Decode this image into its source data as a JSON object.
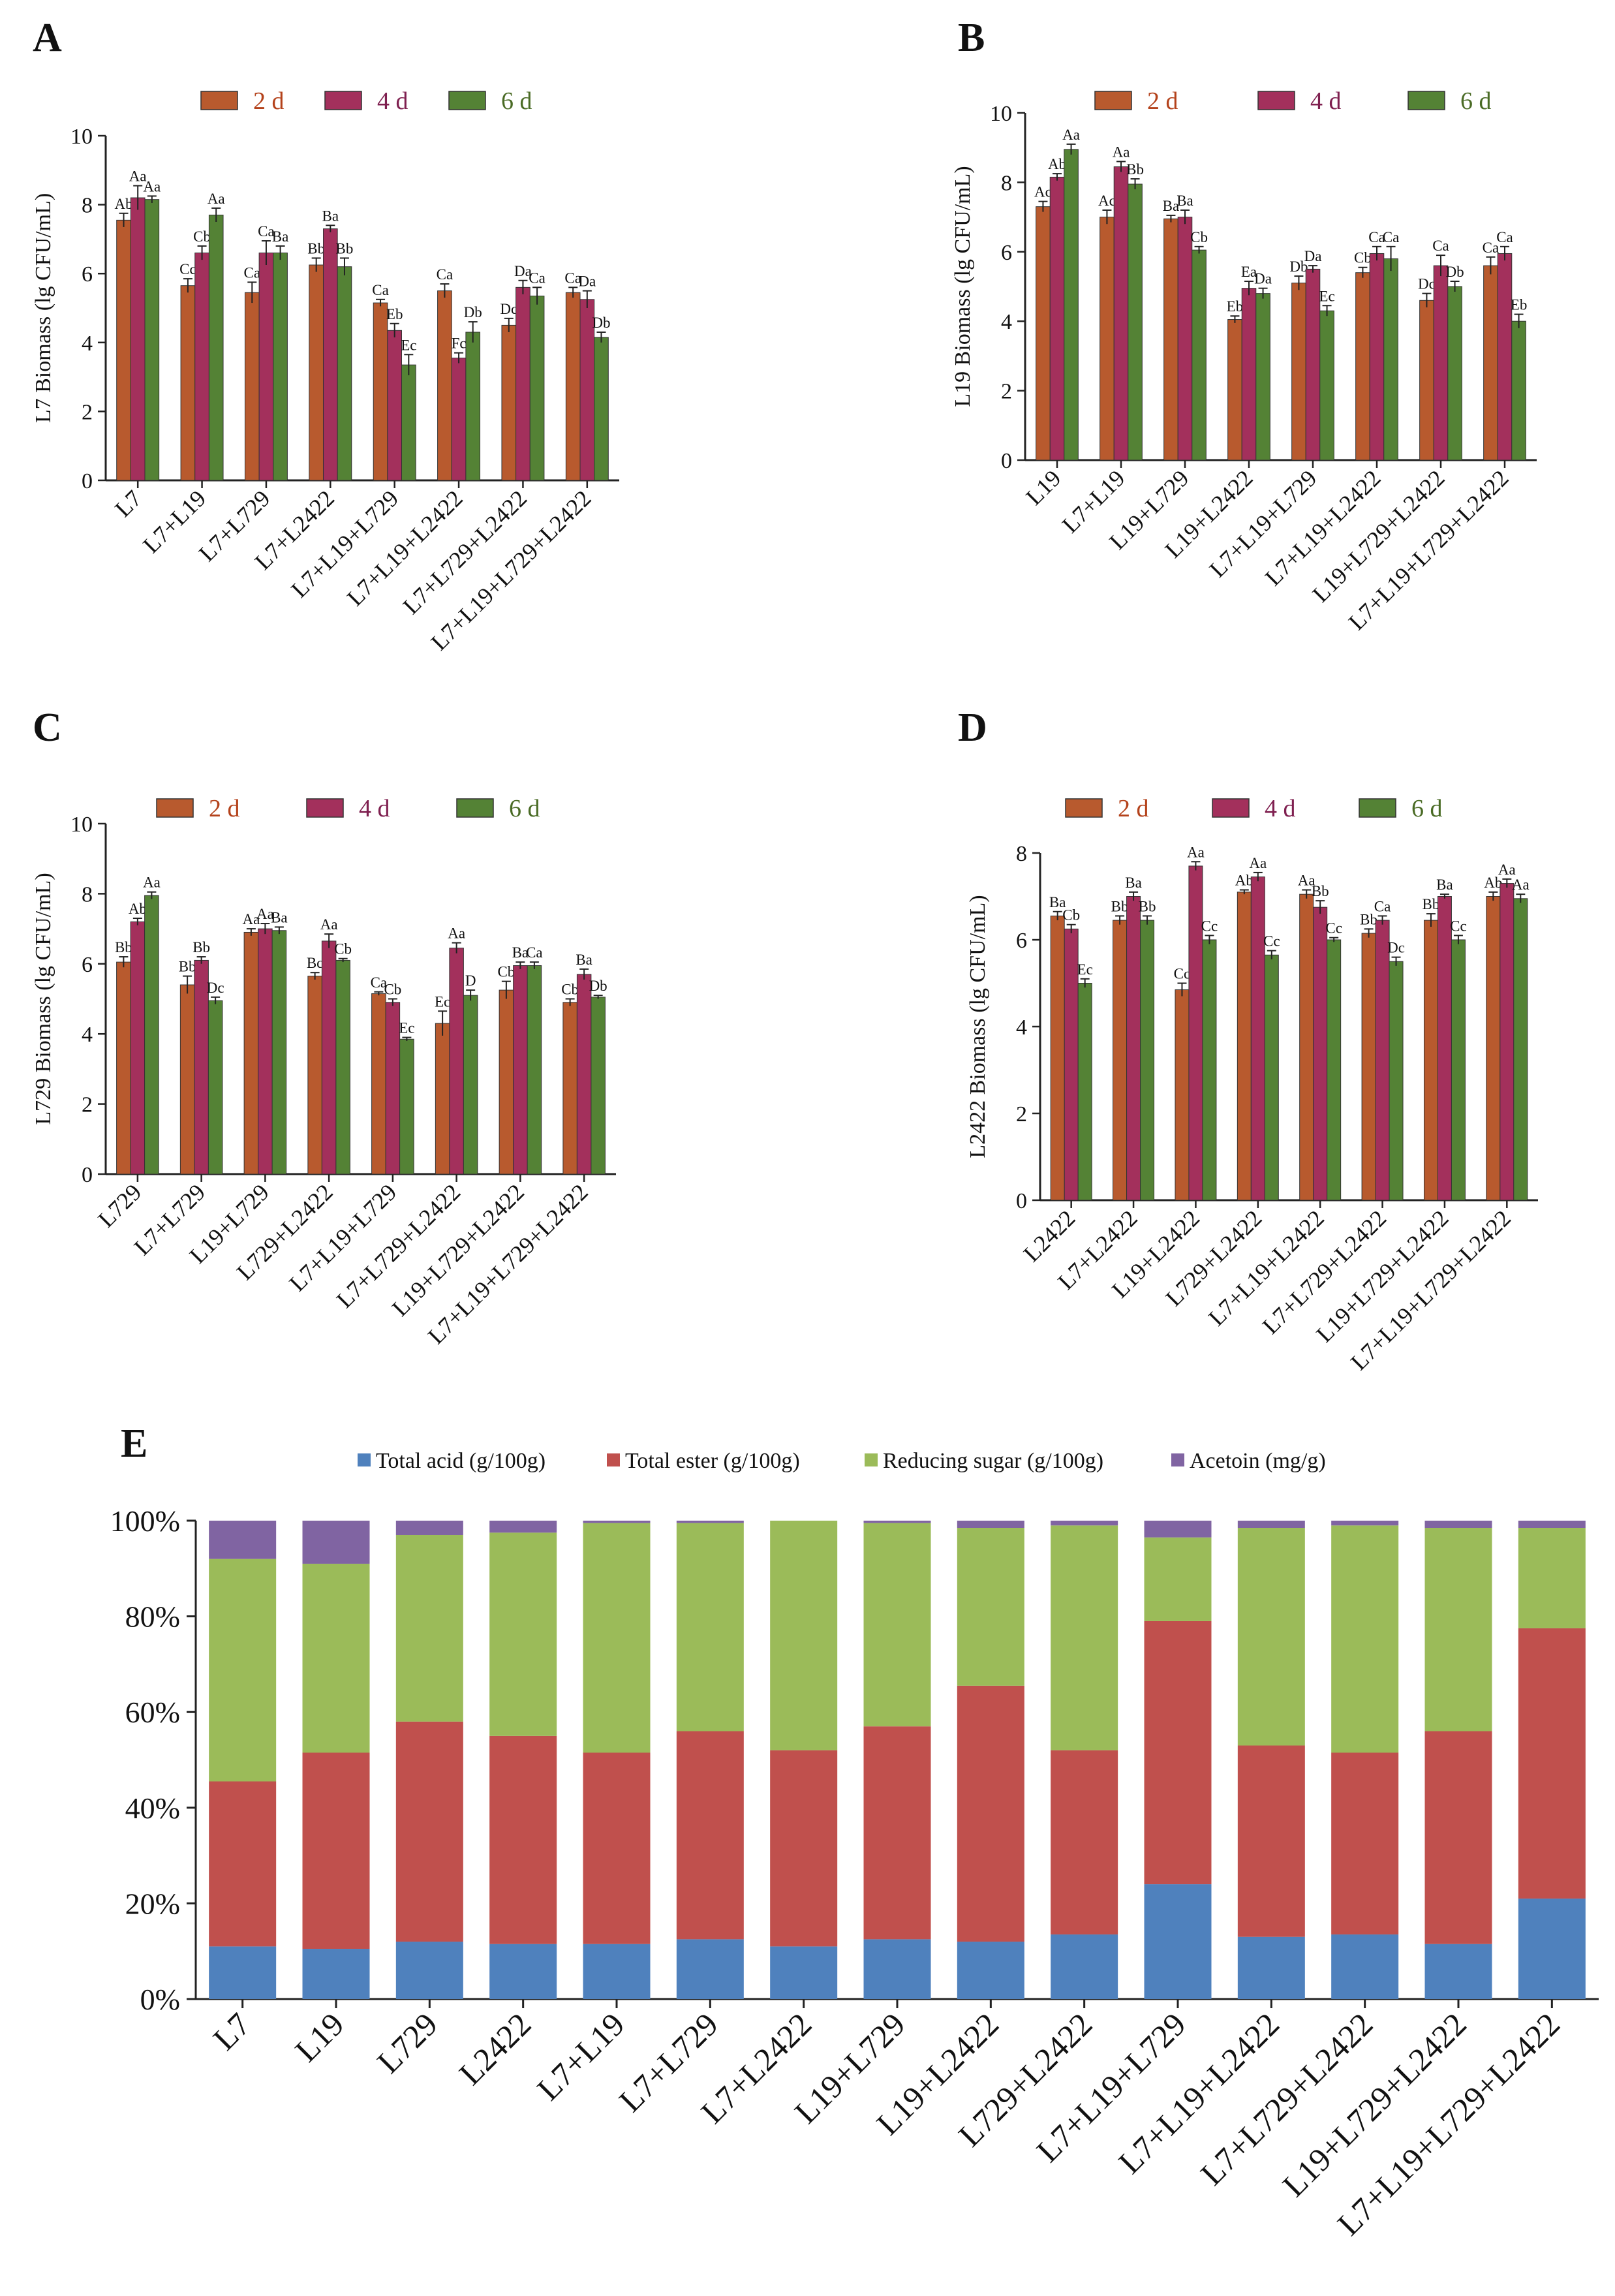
{
  "colors": {
    "d2": "#B85A2E",
    "d4": "#A3305C",
    "d6": "#548235",
    "legend_d2_text": "#B4421B",
    "legend_d4_text": "#7F2050",
    "legend_d6_text": "#4A6B25",
    "acid": "#4F81BD",
    "ester": "#C0504D",
    "sugar": "#9BBB59",
    "acetoin": "#8064A2"
  },
  "chart_data": [
    {
      "panel": "A",
      "type": "bar",
      "ylabel": "L7 Biomass (lg CFU/mL)",
      "ylim": [
        0,
        10
      ],
      "yticks": [
        "0",
        "2",
        "4",
        "6",
        "8",
        "10"
      ],
      "legend": [
        "2 d",
        "4 d",
        "6 d"
      ],
      "categories": [
        "L7",
        "L7+L19",
        "L7+L729",
        "L7+L2422",
        "L7+L19+L729",
        "L7+L19+L2422",
        "L7+L729+L2422",
        "L7+L19+L729+L2422"
      ],
      "series": [
        {
          "name": "2 d",
          "values": [
            7.55,
            5.65,
            5.45,
            6.25,
            5.15,
            5.5,
            4.5,
            5.45
          ],
          "errors": [
            0.2,
            0.2,
            0.3,
            0.2,
            0.1,
            0.2,
            0.2,
            0.15
          ]
        },
        {
          "name": "4 d",
          "values": [
            8.2,
            6.6,
            6.6,
            7.3,
            4.35,
            3.55,
            5.6,
            5.25
          ],
          "errors": [
            0.35,
            0.2,
            0.35,
            0.1,
            0.2,
            0.15,
            0.2,
            0.25
          ]
        },
        {
          "name": "6 d",
          "values": [
            8.15,
            7.7,
            6.6,
            6.2,
            3.35,
            4.3,
            5.35,
            4.15
          ],
          "errors": [
            0.1,
            0.2,
            0.2,
            0.25,
            0.3,
            0.3,
            0.25,
            0.15
          ]
        }
      ],
      "labels": [
        [
          "Ab",
          "Aa",
          "Aa"
        ],
        [
          "Cc",
          "Cb",
          "Aa"
        ],
        [
          "Ca",
          "Ca",
          "Ba"
        ],
        [
          "Bb",
          "Ba",
          "Bb"
        ],
        [
          "Ca",
          "Eb",
          "Ec"
        ],
        [
          "Ca",
          "Fc",
          "Db"
        ],
        [
          "Dc",
          "Da",
          "Ca"
        ],
        [
          "Ca",
          "Da",
          "Db"
        ]
      ]
    },
    {
      "panel": "B",
      "type": "bar",
      "ylabel": "L19 Biomass (lg CFU/mL)",
      "ylim": [
        0,
        10
      ],
      "yticks": [
        "0",
        "2",
        "4",
        "6",
        "8",
        "10"
      ],
      "legend": [
        "2 d",
        "4 d",
        "6 d"
      ],
      "categories": [
        "L19",
        "L7+L19",
        "L19+L729",
        "L19+L2422",
        "L7+L19+L729",
        "L7+L19+L2422",
        "L19+L729+L2422",
        "L7+L19+L729+L2422"
      ],
      "series": [
        {
          "name": "2 d",
          "values": [
            7.3,
            7.0,
            6.95,
            4.05,
            5.1,
            5.4,
            4.6,
            5.6
          ],
          "errors": [
            0.15,
            0.2,
            0.1,
            0.1,
            0.2,
            0.15,
            0.2,
            0.25
          ]
        },
        {
          "name": "4 d",
          "values": [
            8.15,
            8.45,
            7.0,
            4.95,
            5.5,
            5.95,
            5.6,
            5.95
          ],
          "errors": [
            0.1,
            0.15,
            0.2,
            0.2,
            0.1,
            0.2,
            0.3,
            0.2
          ]
        },
        {
          "name": "6 d",
          "values": [
            8.95,
            7.95,
            6.05,
            4.8,
            4.3,
            5.8,
            5.0,
            4.0
          ],
          "errors": [
            0.15,
            0.15,
            0.1,
            0.15,
            0.15,
            0.35,
            0.15,
            0.2
          ]
        }
      ],
      "labels": [
        [
          "Ac",
          "Ab",
          "Aa"
        ],
        [
          "Ac",
          "Aa",
          "Bb"
        ],
        [
          "Ba",
          "Ba",
          "Cb"
        ],
        [
          "Eb",
          "Ea",
          "Da"
        ],
        [
          "Db",
          "Da",
          "Ec"
        ],
        [
          "Cb",
          "Ca",
          "Ca"
        ],
        [
          "Dc",
          "Ca",
          "Db"
        ],
        [
          "Ca",
          "Ca",
          "Eb"
        ]
      ]
    },
    {
      "panel": "C",
      "type": "bar",
      "ylabel": "L729 Biomass (lg CFU/mL)",
      "ylim": [
        0,
        10
      ],
      "yticks": [
        "0",
        "2",
        "4",
        "6",
        "8",
        "10"
      ],
      "legend": [
        "2 d",
        "4 d",
        "6 d"
      ],
      "categories": [
        "L729",
        "L7+L729",
        "L19+L729",
        "L729+L2422",
        "L7+L19+L729",
        "L7+L729+L2422",
        "L19+L729+L2422",
        "L7+L19+L729+L2422"
      ],
      "series": [
        {
          "name": "2 d",
          "values": [
            6.05,
            5.4,
            6.9,
            5.65,
            5.15,
            4.3,
            5.25,
            4.9
          ],
          "errors": [
            0.15,
            0.25,
            0.1,
            0.1,
            0.05,
            0.35,
            0.25,
            0.1
          ]
        },
        {
          "name": "4 d",
          "values": [
            7.2,
            6.1,
            7.0,
            6.65,
            4.9,
            6.45,
            5.95,
            5.7
          ],
          "errors": [
            0.1,
            0.1,
            0.15,
            0.2,
            0.1,
            0.15,
            0.1,
            0.15
          ]
        },
        {
          "name": "6 d",
          "values": [
            7.95,
            4.95,
            6.95,
            6.1,
            3.85,
            5.1,
            5.95,
            5.05
          ],
          "errors": [
            0.1,
            0.1,
            0.1,
            0.05,
            0.05,
            0.15,
            0.1,
            0.05
          ]
        }
      ],
      "labels": [
        [
          "Bb",
          "Ab",
          "Aa"
        ],
        [
          "Bb",
          "Bb",
          "Dc"
        ],
        [
          "Aa",
          "Aa",
          "Ba"
        ],
        [
          "Bc",
          "Aa",
          "Cb"
        ],
        [
          "Ca",
          "Cb",
          "Ec"
        ],
        [
          "Ec",
          "Aa",
          "D"
        ],
        [
          "Cb",
          "Ba",
          "Ca"
        ],
        [
          "Cb",
          "Ba",
          "Db"
        ]
      ]
    },
    {
      "panel": "D",
      "type": "bar",
      "ylabel": "L2422 Biomass (lg CFU/mL)",
      "ylim": [
        0,
        8
      ],
      "yticks": [
        "0",
        "2",
        "4",
        "6",
        "8"
      ],
      "legend": [
        "2 d",
        "4 d",
        "6 d"
      ],
      "categories": [
        "L2422",
        "L7+L2422",
        "L19+L2422",
        "L729+L2422",
        "L7+L19+L2422",
        "L7+L729+L2422",
        "L19+L729+L2422",
        "L7+L19+L729+L2422"
      ],
      "series": [
        {
          "name": "2 d",
          "values": [
            6.55,
            6.45,
            4.85,
            7.1,
            7.05,
            6.15,
            6.45,
            7.0
          ],
          "errors": [
            0.1,
            0.1,
            0.15,
            0.05,
            0.1,
            0.1,
            0.15,
            0.1
          ]
        },
        {
          "name": "4 d",
          "values": [
            6.25,
            7.0,
            7.7,
            7.45,
            6.75,
            6.45,
            7.0,
            7.3
          ],
          "errors": [
            0.1,
            0.1,
            0.1,
            0.1,
            0.15,
            0.1,
            0.05,
            0.1
          ]
        },
        {
          "name": "6 d",
          "values": [
            5.0,
            6.45,
            6.0,
            5.65,
            6.0,
            5.5,
            6.0,
            6.95
          ],
          "errors": [
            0.1,
            0.1,
            0.1,
            0.1,
            0.05,
            0.1,
            0.1,
            0.1
          ]
        }
      ],
      "labels": [
        [
          "Ba",
          "Cb",
          "Ec"
        ],
        [
          "Bb",
          "Ba",
          "Bb"
        ],
        [
          "Cc",
          "Aa",
          "Cc"
        ],
        [
          "Ab",
          "Aa",
          "Cc"
        ],
        [
          "Aa",
          "Bb",
          "Cc"
        ],
        [
          "Bb",
          "Ca",
          "Dc"
        ],
        [
          "Bb",
          "Ba",
          "Cc"
        ],
        [
          "Ab",
          "Aa",
          "Aa"
        ]
      ]
    },
    {
      "panel": "E",
      "type": "bar",
      "stacked": true,
      "percent": true,
      "ylim": [
        0,
        100
      ],
      "yticks": [
        "0%",
        "20%",
        "40%",
        "60%",
        "80%",
        "100%"
      ],
      "legend": [
        "Total acid (g/100g)",
        "Total ester (g/100g)",
        "Reducing sugar (g/100g)",
        "Acetoin (mg/g)"
      ],
      "categories": [
        "L7",
        "L19",
        "L729",
        "L2422",
        "L7+L19",
        "L7+L729",
        "L7+L2422",
        "L19+L729",
        "L19+L2422",
        "L729+L2422",
        "L7+L19+L729",
        "L7+L19+L2422",
        "L7+L729+L2422",
        "L19+L729+L2422",
        "L7+L19+L729+L2422"
      ],
      "series": [
        {
          "name": "Total acid (g/100g)",
          "values": [
            11.0,
            10.5,
            12.0,
            11.5,
            11.5,
            12.5,
            11.0,
            12.5,
            12.0,
            13.5,
            24.0,
            13.0,
            13.5,
            11.5,
            21.0
          ]
        },
        {
          "name": "Total ester (g/100g)",
          "values": [
            34.5,
            41.0,
            46.0,
            43.5,
            40.0,
            43.5,
            41.0,
            44.5,
            53.5,
            38.5,
            55.0,
            40.0,
            38.0,
            44.5,
            56.5
          ]
        },
        {
          "name": "Reducing sugar (g/100g)",
          "values": [
            46.5,
            39.5,
            39.0,
            42.5,
            48.0,
            43.5,
            48.0,
            42.5,
            33.0,
            47.0,
            17.5,
            45.5,
            47.5,
            42.5,
            21.0
          ]
        },
        {
          "name": "Acetoin (mg/g)",
          "values": [
            8.0,
            9.0,
            3.0,
            2.5,
            0.5,
            0.5,
            0.0,
            0.5,
            1.5,
            1.0,
            3.5,
            1.5,
            1.0,
            1.5,
            1.5
          ]
        }
      ]
    }
  ]
}
